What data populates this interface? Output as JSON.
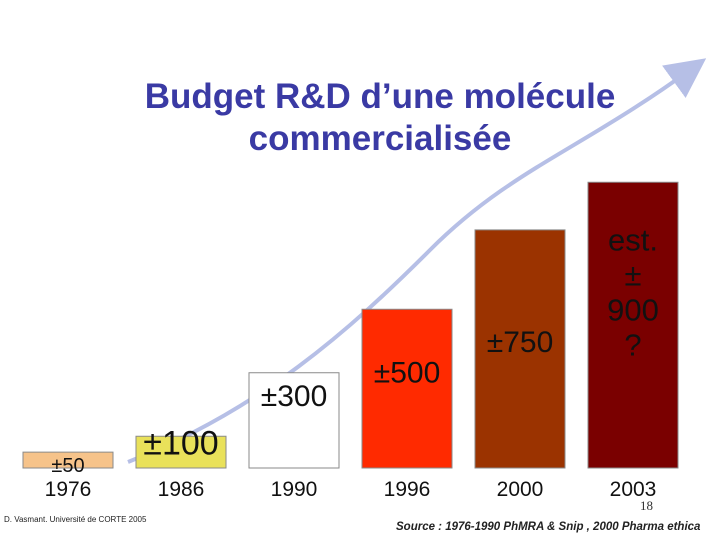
{
  "chart_data": {
    "type": "bar",
    "title": "Budget R&D d’une molécule commercialisée",
    "title_lines": [
      "Budget R&D d’une molécule",
      "commercialisée"
    ],
    "categories": [
      "1976",
      "1986",
      "1990",
      "1996",
      "2000",
      "2003"
    ],
    "values": [
      50,
      100,
      300,
      500,
      750,
      900
    ],
    "labels": [
      "±50",
      "±100",
      "±300",
      "±500",
      "±750",
      "est. ± 900 ?"
    ],
    "label_lines": [
      [
        "±50"
      ],
      [
        "±100"
      ],
      [
        "±300"
      ],
      [
        "±500"
      ],
      [
        "±750"
      ],
      [
        "est.",
        "±",
        "900",
        "?"
      ]
    ],
    "colors": [
      "#f6c38a",
      "#e9e15a",
      "#ffffff",
      "#ff2a00",
      "#9b3300",
      "#7a0000"
    ],
    "ylim": [
      0,
      1000
    ],
    "xlabel": "",
    "ylabel": "",
    "trend_arrow_color": "#b6bfe6"
  },
  "footer": {
    "credit": "D. Vasmant. Université de CORTE 2005",
    "source": "Source : 1976-1990 PhMRA & Snip ,   2000 Pharma ethica",
    "page_number": "18"
  }
}
